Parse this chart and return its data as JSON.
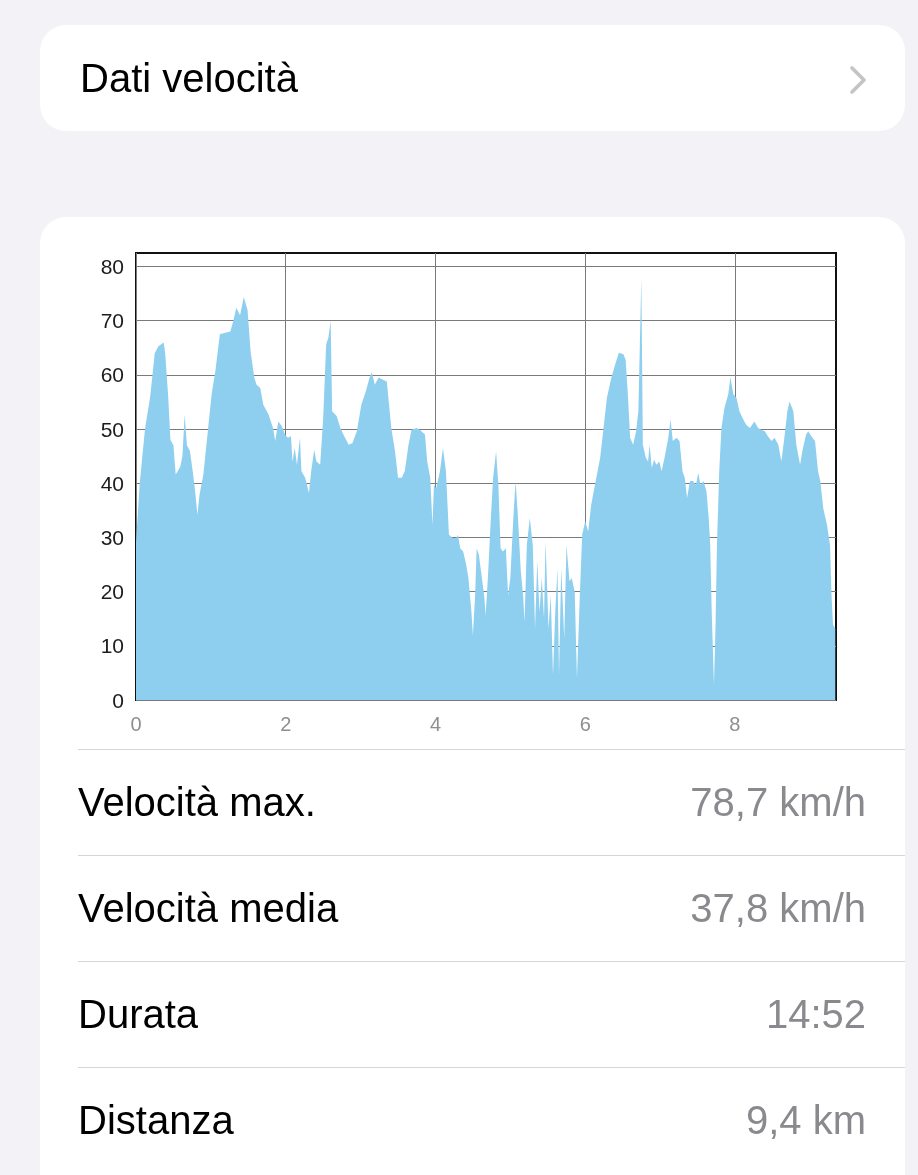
{
  "chart_data": {
    "type": "area",
    "title": "Dati velocità",
    "annotations": [
      "Velocità max.",
      "78,7 km/h",
      "Velocità media",
      "37,8 km/h",
      "Durata",
      "14:52",
      "Distanza",
      "9,4 km"
    ],
    "x": [
      0,
      0.05,
      0.12,
      0.19,
      0.25,
      0.3,
      0.37,
      0.39,
      0.43,
      0.46,
      0.5,
      0.53,
      0.59,
      0.62,
      0.65,
      0.68,
      0.72,
      0.76,
      0.79,
      0.82,
      0.85,
      0.9,
      0.94,
      1.01,
      1.06,
      1.12,
      1.19,
      1.26,
      1.3,
      1.34,
      1.39,
      1.44,
      1.49,
      1.53,
      1.58,
      1.61,
      1.66,
      1.7,
      1.77,
      1.83,
      1.86,
      1.9,
      1.95,
      1.99,
      2.03,
      2.07,
      2.09,
      2.12,
      2.15,
      2.19,
      2.21,
      2.26,
      2.31,
      2.34,
      2.38,
      2.41,
      2.46,
      2.5,
      2.54,
      2.57,
      2.6,
      2.62,
      2.68,
      2.73,
      2.77,
      2.84,
      2.89,
      2.95,
      3.01,
      3.07,
      3.12,
      3.15,
      3.19,
      3.24,
      3.3,
      3.35,
      3.38,
      3.41,
      3.46,
      3.5,
      3.55,
      3.59,
      3.64,
      3.68,
      3.75,
      3.79,
      3.86,
      3.89,
      3.93,
      3.96,
      3.98,
      4.01,
      4.06,
      4.1,
      4.14,
      4.18,
      4.23,
      4.28,
      4.3,
      4.33,
      4.37,
      4.41,
      4.44,
      4.48,
      4.5,
      4.53,
      4.55,
      4.58,
      4.62,
      4.65,
      4.67,
      4.7,
      4.74,
      4.77,
      4.81,
      4.84,
      4.87,
      4.9,
      4.94,
      4.97,
      5.0,
      5.04,
      5.07,
      5.1,
      5.14,
      5.17,
      5.19,
      5.22,
      5.26,
      5.3,
      5.33,
      5.36,
      5.39,
      5.42,
      5.45,
      5.47,
      5.51,
      5.54,
      5.57,
      5.6,
      5.63,
      5.65,
      5.68,
      5.72,
      5.75,
      5.79,
      5.82,
      5.86,
      5.89,
      5.93,
      5.96,
      6.0,
      6.04,
      6.08,
      6.13,
      6.2,
      6.24,
      6.29,
      6.35,
      6.4,
      6.45,
      6.51,
      6.54,
      6.57,
      6.6,
      6.64,
      6.68,
      6.71,
      6.73,
      6.75,
      6.77,
      6.81,
      6.84,
      6.86,
      6.89,
      6.92,
      6.95,
      6.99,
      7.02,
      7.06,
      7.11,
      7.14,
      7.17,
      7.22,
      7.26,
      7.3,
      7.33,
      7.36,
      7.4,
      7.44,
      7.48,
      7.51,
      7.54,
      7.58,
      7.62,
      7.65,
      7.67,
      7.69,
      7.72,
      7.74,
      7.76,
      7.79,
      7.82,
      7.86,
      7.91,
      7.94,
      7.98,
      8.02,
      8.06,
      8.11,
      8.15,
      8.2,
      8.26,
      8.31,
      8.35,
      8.4,
      8.44,
      8.49,
      8.53,
      8.58,
      8.62,
      8.66,
      8.7,
      8.73,
      8.78,
      8.82,
      8.87,
      8.9,
      8.95,
      8.98,
      9.02,
      9.07,
      9.11,
      9.14,
      9.18,
      9.23,
      9.27,
      9.29,
      9.31,
      9.34
    ],
    "values": [
      29,
      40,
      50,
      56,
      64,
      65.3,
      66,
      64,
      56,
      48,
      47,
      41.6,
      43,
      45,
      52.7,
      47,
      46,
      42,
      38.5,
      34.2,
      38,
      41.6,
      47,
      56.4,
      60.7,
      67.5,
      67.8,
      68,
      70,
      72.4,
      71,
      74.4,
      72,
      64.4,
      59.5,
      58.2,
      57.6,
      54.5,
      52.7,
      50.2,
      47.8,
      51.4,
      50.5,
      49,
      48.4,
      48.7,
      44,
      46.5,
      43.4,
      48.4,
      42.2,
      41,
      38.2,
      42.2,
      46.2,
      44,
      43.4,
      52,
      65.6,
      66.9,
      70,
      53.3,
      52.4,
      50.2,
      49,
      47.1,
      47.4,
      49.6,
      54.5,
      57,
      59.5,
      60.5,
      58.2,
      59.5,
      59.1,
      58.8,
      54.5,
      50.2,
      45.9,
      41,
      41,
      42.2,
      47.1,
      49.9,
      50.2,
      49.9,
      49,
      44,
      41,
      32.3,
      39.7,
      39.1,
      42.2,
      46.5,
      42.2,
      30.5,
      29.9,
      29.9,
      30.5,
      28,
      27.4,
      25,
      22.5,
      16.3,
      12,
      19.4,
      28,
      26.8,
      22.5,
      19.4,
      15.7,
      22.5,
      33.6,
      41,
      45.9,
      39.7,
      28,
      27.4,
      28,
      19.4,
      22.5,
      33.6,
      40.4,
      34.2,
      23.7,
      19.4,
      14.5,
      28.6,
      33.6,
      28.6,
      13.2,
      25.6,
      16.3,
      22.5,
      15.1,
      29.3,
      13.2,
      19.4,
      4.6,
      16.3,
      24.3,
      4.6,
      24.3,
      11.4,
      28.6,
      21.9,
      22.5,
      20,
      4,
      20,
      30.5,
      33,
      31.1,
      36,
      39.7,
      44.7,
      49.6,
      55.8,
      59.5,
      61.9,
      64.1,
      63.8,
      62.8,
      56.4,
      48.4,
      47.1,
      49.6,
      53.3,
      65.6,
      78,
      47.1,
      44.7,
      44,
      47.1,
      42.8,
      44.4,
      43.4,
      44,
      42.2,
      44.7,
      48.4,
      51.8,
      47.8,
      48.4,
      47.8,
      42.2,
      41,
      37.3,
      40.4,
      40.4,
      39.7,
      41.9,
      39.7,
      40.4,
      38.5,
      33.6,
      28.6,
      16.3,
      2.8,
      13.2,
      28.6,
      42.2,
      50.2,
      53.9,
      56.4,
      59.5,
      56.4,
      55.8,
      53.3,
      51.8,
      50.8,
      50.2,
      51.4,
      50.2,
      49.9,
      49.6,
      48.7,
      47.8,
      48.4,
      47.1,
      44,
      48.4,
      53.3,
      55.1,
      53.3,
      47.1,
      43.4,
      45.9,
      49,
      49.6,
      48.7,
      47.8,
      42.2,
      40.4,
      35.4,
      32.3,
      28.6,
      19.4,
      13.9,
      13.2
    ],
    "color": "#8ecfef",
    "xlim": [
      0,
      9.35
    ],
    "xticks": [
      0,
      2,
      4,
      6,
      8
    ],
    "ylim": [
      0,
      82.5
    ],
    "yticks": [
      0,
      10,
      20,
      30,
      40,
      50,
      60,
      70,
      80
    ],
    "grid": true
  }
}
